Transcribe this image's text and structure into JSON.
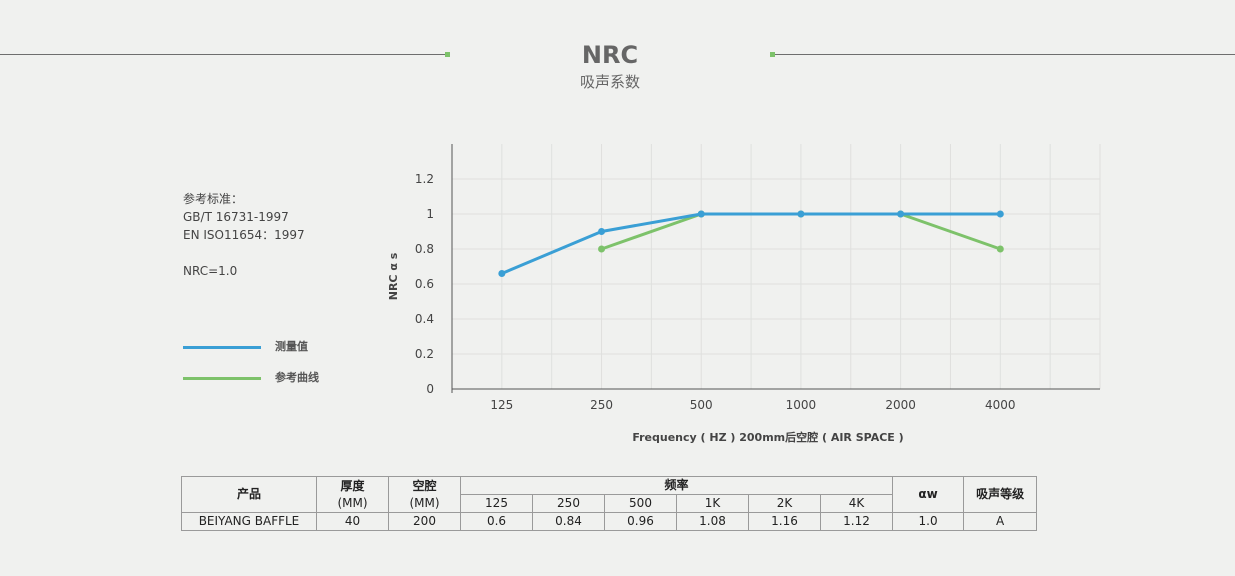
{
  "header": {
    "title": "NRC",
    "subtitle": "吸声系数"
  },
  "info": {
    "standard_label": "参考标准：",
    "standard_1": "GB/T 16731-1997",
    "standard_2": "EN ISO11654：1997",
    "nrc": "NRC=1.0"
  },
  "legend": [
    {
      "label": "测量值",
      "color": "#3a9fd5"
    },
    {
      "label": "参考曲线",
      "color": "#7dc26a"
    }
  ],
  "chart_data": {
    "type": "line",
    "categories": [
      "125",
      "250",
      "500",
      "1000",
      "2000",
      "4000"
    ],
    "series": [
      {
        "name": "测量值",
        "color": "#3a9fd5",
        "values": [
          0.66,
          0.9,
          1.0,
          1.0,
          1.0,
          1.0
        ]
      },
      {
        "name": "参考曲线",
        "color": "#7dc26a",
        "values": [
          null,
          0.8,
          1.0,
          1.0,
          1.0,
          0.8
        ]
      }
    ],
    "yticks": [
      "0",
      "0.2",
      "0.4",
      "0.6",
      "0.8",
      "1",
      "1.2"
    ],
    "ylim": [
      0,
      1.4
    ],
    "ylabel": "NRC α s",
    "xlabel": "Frequency ( HZ )  200mm后空腔 ( AIR SPACE )",
    "grid": true
  },
  "table": {
    "headers": {
      "product": "产品",
      "thickness": [
        "厚度",
        "(MM)"
      ],
      "cavity": [
        "空腔",
        "(MM)"
      ],
      "frequency": "频率",
      "freqs": [
        "125",
        "250",
        "500",
        "1K",
        "2K",
        "4K"
      ],
      "aw": "αw",
      "grade": "吸声等级"
    },
    "row": {
      "product": "BEIYANG BAFFLE",
      "thickness": "40",
      "cavity": "200",
      "values": [
        "0.6",
        "0.84",
        "0.96",
        "1.08",
        "1.16",
        "1.12"
      ],
      "aw": "1.0",
      "grade": "A"
    }
  }
}
